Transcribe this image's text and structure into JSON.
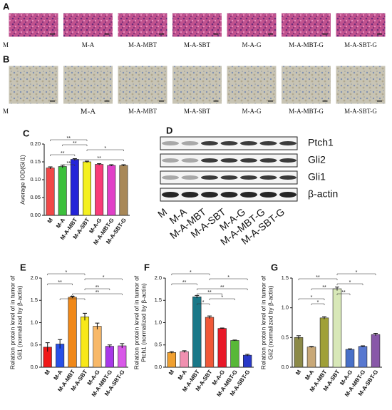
{
  "image_rows": [
    {
      "letter": "A",
      "labels": [
        "M",
        "M-A",
        "M-A-MBT",
        "M-A-SBT",
        "M-A-G",
        "M-A-MBT-G",
        "M-A-SBT-G"
      ]
    },
    {
      "letter": "B",
      "labels": [
        "M",
        "M-A",
        "M-A-MBT",
        "M-A-SBT",
        "M-A-G",
        "M-A-MBT-G",
        "M-A-SBT-G"
      ]
    }
  ],
  "blot": {
    "letter": "D",
    "proteins": [
      "Ptch1",
      "Gli2",
      "Gli1",
      "β-actin"
    ],
    "lanes": [
      "M",
      "M-A",
      "M-A-MBT",
      "M-A-SBT",
      "M-A-G",
      "M-A-MBT-G",
      "M-A-SBT-G"
    ]
  },
  "chart_data": [
    {
      "type": "bar",
      "letter": "C",
      "ylabel": [
        "Average IOD(Gli1)"
      ],
      "categories": [
        "M",
        "M-A",
        "M-A-MBT",
        "M-A-SBT",
        "M-A-G",
        "M-A-MBT-G",
        "M-A-SBT-G"
      ],
      "values": [
        0.133,
        0.137,
        0.157,
        0.15,
        0.143,
        0.14,
        0.14
      ],
      "errors": [
        0.003,
        0.004,
        0.002,
        0.002,
        0.002,
        0.002,
        0.002
      ],
      "colors": [
        "#f04848",
        "#3cc03c",
        "#2424d8",
        "#f4f020",
        "#f83c78",
        "#e040c8",
        "#a88858"
      ],
      "ylim": [
        0,
        0.2
      ],
      "yticks": [
        {
          "value": 0,
          "label": "0.00"
        },
        {
          "value": 0.05,
          "label": "0.05"
        },
        {
          "value": 0.1,
          "label": "0.10"
        },
        {
          "value": 0.15,
          "label": "0.15"
        },
        {
          "value": 0.2,
          "label": "0.20"
        }
      ],
      "significance": [
        {
          "label": "**",
          "between": [
            "M",
            "M-A-SBT"
          ]
        },
        {
          "label": "**",
          "between": [
            "M-A",
            "M-A-SBT"
          ]
        },
        {
          "label": "*",
          "between": [
            "M-A-SBT",
            "M-A-SBT-G"
          ]
        },
        {
          "label": "**",
          "between": [
            "M",
            "M-A-MBT"
          ]
        },
        {
          "label": "**",
          "between": [
            "M-A-MBT",
            "M-A-SBT-G"
          ]
        },
        {
          "label": "**",
          "between": [
            "M-A",
            "M-A-MBT"
          ]
        }
      ]
    },
    {
      "type": "bar",
      "letter": "E",
      "ylabel": [
        "Relation protein level of in tumor of",
        "Gli1 (normalized by β-actin)"
      ],
      "categories": [
        "M",
        "M-A",
        "M-A-MBT",
        "M-A-SBT",
        "M-A-G",
        "M-A-MBT-G",
        "M-A-SBT-G"
      ],
      "values": [
        0.45,
        0.52,
        1.57,
        1.13,
        0.92,
        0.47,
        0.48
      ],
      "errors": [
        0.1,
        0.1,
        0.02,
        0.08,
        0.07,
        0.03,
        0.05
      ],
      "colors": [
        "#f01818",
        "#2850e8",
        "#f08818",
        "#f8e818",
        "#f8b868",
        "#a838e8",
        "#d858e8"
      ],
      "ylim": [
        0,
        2
      ],
      "yticks": [
        {
          "value": 0,
          "label": "0.0"
        },
        {
          "value": 0.5,
          "label": "0.5"
        },
        {
          "value": 1,
          "label": "1.0"
        },
        {
          "value": 1.5,
          "label": "1.5"
        },
        {
          "value": 2,
          "label": "2.0"
        }
      ],
      "significance": [
        {
          "label": "*",
          "between": [
            "M",
            "M-A-SBT"
          ]
        },
        {
          "label": "*",
          "between": [
            "M-A-SBT",
            "M-A-SBT-G"
          ]
        },
        {
          "label": "**",
          "between": [
            "M",
            "M-A-MBT"
          ]
        },
        {
          "label": "**",
          "between": [
            "M-A-SBT",
            "M-A-MBT-G"
          ]
        },
        {
          "label": "**",
          "between": [
            "M-A-MBT",
            "M-A-SBT-G"
          ]
        },
        {
          "label": "**",
          "between": [
            "M-A",
            "M-A-SBT"
          ]
        }
      ]
    },
    {
      "type": "bar",
      "letter": "F",
      "ylabel": [
        "Relation protein level of in tumor of",
        "Ptch1 (normalized by β-actin)"
      ],
      "categories": [
        "M",
        "M-A",
        "M-A-MBT",
        "M-A-SBT",
        "M-A-G",
        "M-A-MBT-G",
        "M-A-SBT-G"
      ],
      "values": [
        0.33,
        0.35,
        1.58,
        1.12,
        0.87,
        0.6,
        0.27
      ],
      "errors": [
        0.02,
        0.02,
        0.03,
        0.03,
        0.01,
        0.01,
        0.02
      ],
      "colors": [
        "#f0a030",
        "#f090b0",
        "#1a7888",
        "#f05838",
        "#e81828",
        "#58b838",
        "#2838c8"
      ],
      "ylim": [
        0,
        2
      ],
      "yticks": [
        {
          "value": 0,
          "label": "0.0"
        },
        {
          "value": 0.5,
          "label": "0.5"
        },
        {
          "value": 1,
          "label": "1.0"
        },
        {
          "value": 1.5,
          "label": "1.5"
        },
        {
          "value": 2,
          "label": "2.0"
        }
      ],
      "significance": [
        {
          "label": "*",
          "between": [
            "M",
            "M-A-SBT"
          ]
        },
        {
          "label": "*",
          "between": [
            "M-A-SBT",
            "M-A-SBT-G"
          ]
        },
        {
          "label": "**",
          "between": [
            "M",
            "M-A-MBT"
          ]
        },
        {
          "label": "**",
          "between": [
            "M-A-MBT",
            "M-A-SBT-G"
          ]
        },
        {
          "label": "**",
          "between": [
            "M-A-MBT",
            "M-A-G"
          ]
        },
        {
          "label": "*",
          "between": [
            "M-A-SBT",
            "M-A-MBT-G"
          ]
        },
        {
          "label": "*",
          "between": [
            "M-A-MBT",
            "M-A-SBT"
          ]
        }
      ]
    },
    {
      "type": "bar",
      "letter": "G",
      "ylabel": [
        "Relation protein level of in tumor of",
        "Gli2 (normalized by β-actin)"
      ],
      "categories": [
        "M",
        "M-A",
        "M-A-MBT",
        "M-A-SBT",
        "M-A-G",
        "M-A-MBT-G",
        "M-A-SBT-G"
      ],
      "values": [
        0.5,
        0.34,
        0.83,
        1.32,
        0.3,
        0.35,
        0.55
      ],
      "errors": [
        0.03,
        0.01,
        0.02,
        0.03,
        0.01,
        0.01,
        0.02
      ],
      "colors": [
        "#8c8a48",
        "#c8a878",
        "#a0a038",
        "#d8e8b8",
        "#4870c8",
        "#5878d0",
        "#8858a8"
      ],
      "ylim": [
        0,
        1.5
      ],
      "yticks": [
        {
          "value": 0,
          "label": "0.0"
        },
        {
          "value": 0.5,
          "label": "0.5"
        },
        {
          "value": 1,
          "label": "1.0"
        },
        {
          "value": 1.5,
          "label": "1.5"
        }
      ],
      "significance": [
        {
          "label": "*",
          "between": [
            "M-A-SBT",
            "M-A-SBT-G"
          ]
        },
        {
          "label": "**",
          "between": [
            "M",
            "M-A-SBT"
          ]
        },
        {
          "label": "*",
          "between": [
            "M-A-SBT",
            "M-A-MBT-G"
          ]
        },
        {
          "label": "**",
          "between": [
            "M-A",
            "M-A-SBT"
          ]
        },
        {
          "label": "**",
          "between": [
            "M-A-SBT",
            "M-A-G"
          ]
        },
        {
          "label": "*",
          "between": [
            "M",
            "M-A-MBT"
          ]
        },
        {
          "label": "*",
          "between": [
            "M-A",
            "M-A-MBT"
          ]
        }
      ]
    }
  ]
}
